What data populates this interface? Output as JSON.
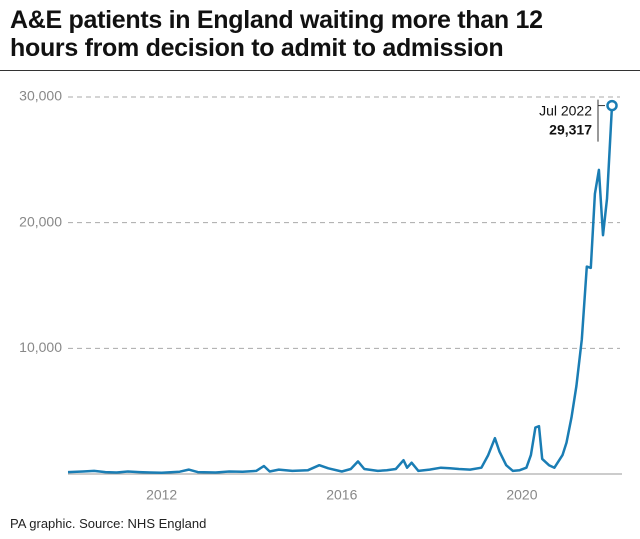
{
  "chart_data": {
    "type": "line",
    "title": "A&E patients in England waiting more than 12 hours from decision to admit to admission",
    "source": "PA graphic. Source: NHS England",
    "annotation": {
      "text": "Jul 2022",
      "value_label": "29,317"
    },
    "series": [
      {
        "name": "A&E patients waiting more than 12 hours",
        "color": "#1a7db4",
        "x": [
          2010.42,
          2010.75,
          2011.0,
          2011.25,
          2011.5,
          2011.75,
          2012.0,
          2012.25,
          2012.5,
          2012.9,
          2013.1,
          2013.3,
          2013.7,
          2014.0,
          2014.3,
          2014.6,
          2014.77,
          2014.9,
          2015.1,
          2015.4,
          2015.75,
          2016.0,
          2016.2,
          2016.5,
          2016.7,
          2016.86,
          2017.0,
          2017.3,
          2017.5,
          2017.7,
          2017.87,
          2017.95,
          2018.05,
          2018.2,
          2018.45,
          2018.7,
          2018.9,
          2019.1,
          2019.35,
          2019.6,
          2019.75,
          2019.9,
          2020.0,
          2020.15,
          2020.3,
          2020.45,
          2020.6,
          2020.7,
          2020.8,
          2020.88,
          2020.95,
          2021.1,
          2021.22,
          2021.4,
          2021.49,
          2021.6,
          2021.71,
          2021.83,
          2021.94,
          2022.03,
          2022.12,
          2022.21,
          2022.3,
          2022.39,
          2022.5
        ],
        "values": [
          150,
          200,
          250,
          150,
          120,
          200,
          150,
          120,
          100,
          180,
          350,
          150,
          120,
          200,
          180,
          250,
          640,
          200,
          350,
          250,
          300,
          700,
          450,
          200,
          400,
          1000,
          400,
          250,
          300,
          400,
          1100,
          500,
          900,
          250,
          350,
          500,
          450,
          400,
          350,
          500,
          1500,
          2850,
          1800,
          700,
          250,
          300,
          500,
          1500,
          3700,
          3800,
          1200,
          700,
          500,
          1500,
          2500,
          4500,
          7000,
          10700,
          16500,
          16400,
          22300,
          24200,
          19000,
          21900,
          29317
        ]
      }
    ],
    "xlim": [
      2010.42,
      2022.5
    ],
    "xticks": [
      {
        "value": 2012.5,
        "label": "2012"
      },
      {
        "value": 2016.5,
        "label": "2016"
      },
      {
        "value": 2020.5,
        "label": "2020"
      }
    ],
    "ylim": [
      0,
      30000
    ],
    "yticks": [
      {
        "value": 10000,
        "label": "10,000"
      },
      {
        "value": 20000,
        "label": "20,000"
      },
      {
        "value": 30000,
        "label": "30,000"
      }
    ],
    "grid": true
  }
}
